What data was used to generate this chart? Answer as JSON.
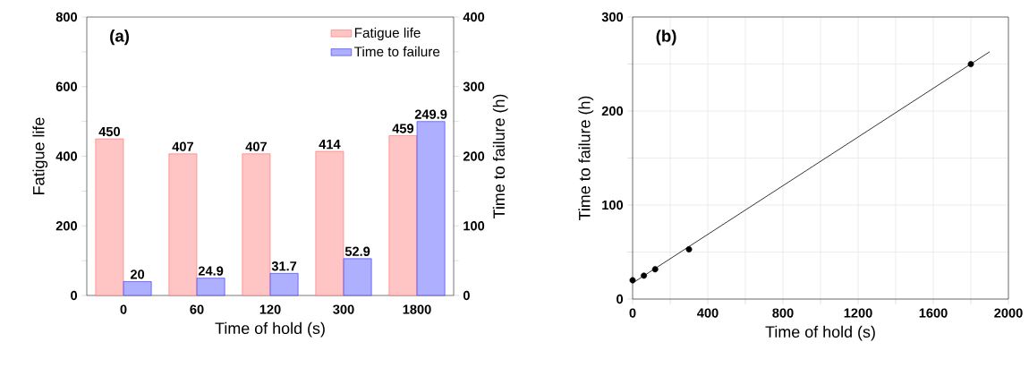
{
  "chart_data": [
    {
      "type": "bar",
      "categories": [
        "0",
        "60",
        "120",
        "300",
        "1800"
      ],
      "xlabel": "Time of hold (s)",
      "ylabel": "Fatigue life",
      "y2label": "Time to failure (h)",
      "series": [
        {
          "name": "Fatigue life",
          "color": "#ff5a5a",
          "values": [
            450,
            407,
            407,
            414,
            459
          ]
        },
        {
          "name": "Time to failure",
          "color": "#1a1aff",
          "values": [
            20,
            24.9,
            31.7,
            52.9,
            249.9
          ],
          "axis": "y2"
        }
      ],
      "ylim": [
        0,
        800
      ],
      "yticks": [
        0,
        {
          "value": 100,
          "label": null
        },
        200,
        {
          "value": 300,
          "label": null
        },
        400,
        {
          "value": 500,
          "label": null
        },
        600,
        {
          "value": 700,
          "label": null
        },
        800
      ],
      "y2lim": [
        0,
        400
      ],
      "y2ticks": [
        0,
        {
          "value": 50,
          "label": null
        },
        100,
        {
          "value": 150,
          "label": null
        },
        200,
        {
          "value": 250,
          "label": null
        },
        300,
        {
          "value": 350,
          "label": null
        },
        400
      ],
      "legend": "top right",
      "data_labels": true,
      "annotations": [
        "(a)"
      ]
    },
    {
      "type": "scatter",
      "xlabel": "Time of hold (s)",
      "ylabel": "Time to failure (h)",
      "grid": true,
      "series": [
        {
          "type": "scatter",
          "marker": "circle",
          "color": "#000000",
          "x": [
            0,
            60,
            120,
            300,
            1800
          ],
          "values": [
            20,
            24.9,
            31.7,
            52.9,
            249.9
          ]
        },
        {
          "type": "line",
          "color": "#000000",
          "x": [
            0,
            1900
          ],
          "values": [
            17,
            263
          ]
        }
      ],
      "xlim": [
        0,
        2000
      ],
      "xticks": [
        0,
        {
          "value": 200,
          "label": null
        },
        400,
        {
          "value": 600,
          "label": null
        },
        800,
        {
          "value": 1000,
          "label": null
        },
        1200,
        {
          "value": 1400,
          "label": null
        },
        1600,
        {
          "value": 1800,
          "label": null
        },
        2000
      ],
      "ylim": [
        0,
        300
      ],
      "yticks": [
        0,
        {
          "value": 50,
          "label": null
        },
        100,
        {
          "value": 150,
          "label": null
        },
        200,
        {
          "value": 250,
          "label": null
        },
        300
      ],
      "annotations": [
        "(b)"
      ]
    }
  ]
}
